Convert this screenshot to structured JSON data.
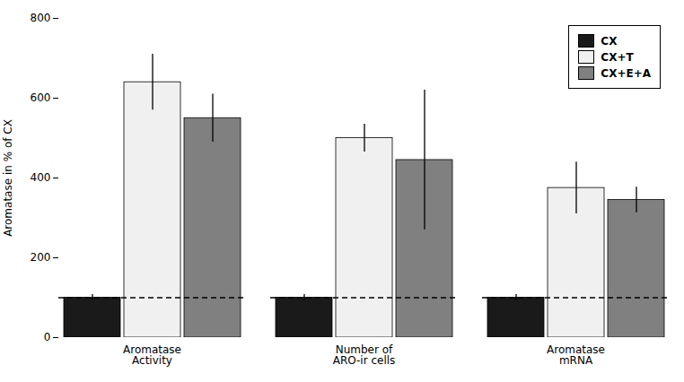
{
  "chart_data": {
    "type": "bar",
    "categories": [
      "Aromatase\nActivity",
      "Number of\nARO-ir cells",
      "Aromatase\nmRNA"
    ],
    "series": [
      {
        "name": "CX",
        "color": "#1a1a1a",
        "values": [
          100,
          100,
          100
        ],
        "errors": [
          8,
          8,
          8
        ]
      },
      {
        "name": "CX+T",
        "color": "#f0f0f0",
        "values": [
          640,
          500,
          375
        ],
        "errors": [
          70,
          35,
          65
        ]
      },
      {
        "name": "CX+E+A",
        "color": "#808080",
        "values": [
          550,
          445,
          345
        ],
        "errors": [
          60,
          175,
          32
        ]
      }
    ],
    "ylabel": "Aromatase in % of CX",
    "ylim": [
      0,
      800
    ],
    "yticks": [
      0,
      200,
      400,
      600,
      800
    ],
    "reference_line": 100,
    "legend": "upper right",
    "grid": false
  }
}
